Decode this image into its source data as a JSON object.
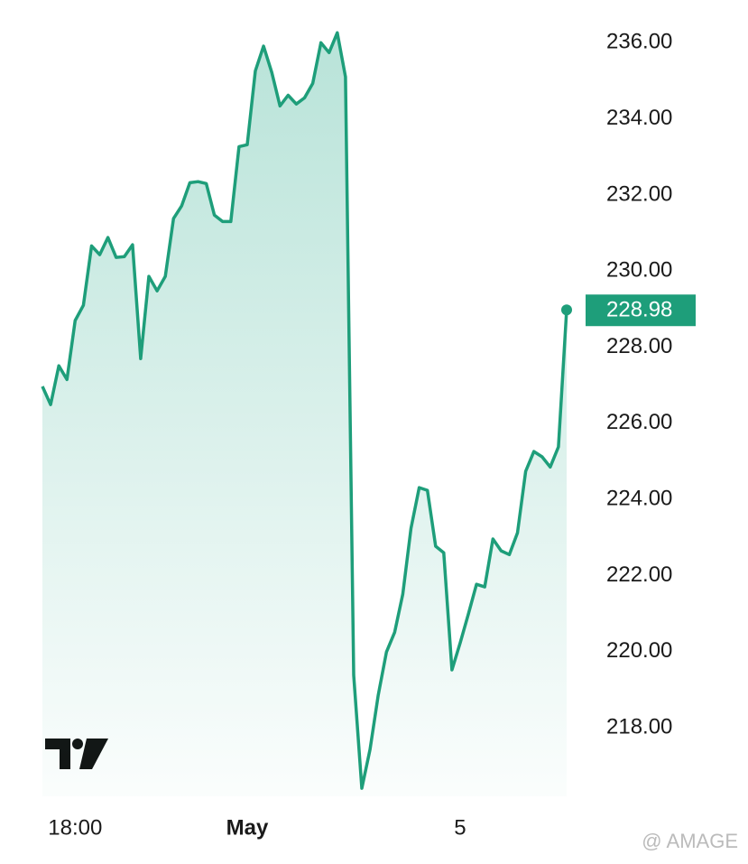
{
  "chart_data": {
    "type": "area",
    "categories": [
      null,
      null,
      null,
      null,
      "18:00",
      null,
      null,
      null,
      null,
      null,
      null,
      null,
      null,
      null,
      null,
      null,
      null,
      null,
      null,
      null,
      null,
      null,
      null,
      null,
      null,
      "May",
      null,
      null,
      null,
      null,
      null,
      null,
      null,
      null,
      null,
      null,
      null,
      null,
      null,
      null,
      null,
      null,
      null,
      null,
      null,
      null,
      null,
      null,
      null,
      null,
      null,
      "5",
      null,
      null,
      null,
      null,
      null,
      null,
      null,
      null,
      null,
      null,
      null,
      null,
      null
    ],
    "values": [
      226.97,
      226.49,
      227.51,
      227.15,
      228.7,
      229.1,
      230.66,
      230.43,
      230.88,
      230.36,
      230.38,
      230.69,
      227.7,
      229.86,
      229.48,
      229.86,
      231.38,
      231.71,
      232.32,
      232.35,
      232.3,
      231.47,
      231.3,
      231.3,
      233.27,
      233.32,
      235.26,
      235.91,
      235.22,
      234.34,
      234.62,
      234.39,
      234.55,
      234.93,
      236.0,
      235.74,
      236.26,
      235.1,
      219.38,
      216.41,
      217.43,
      218.86,
      219.99,
      220.51,
      221.51,
      223.24,
      224.31,
      224.24,
      222.77,
      222.6,
      219.52,
      220.23,
      220.99,
      221.77,
      221.7,
      222.96,
      222.65,
      222.55,
      223.12,
      224.74,
      225.26,
      225.12,
      224.85,
      225.38,
      228.98
    ],
    "color": "#1e9e7a",
    "ylim": [
      216.2,
      236.6
    ],
    "yticks": [
      {
        "value": 218,
        "label": "218.00"
      },
      {
        "value": 220,
        "label": "220.00"
      },
      {
        "value": 222,
        "label": "222.00"
      },
      {
        "value": 224,
        "label": "224.00"
      },
      {
        "value": 226,
        "label": "226.00"
      },
      {
        "value": 228,
        "label": "228.00"
      },
      {
        "value": 230,
        "label": "230.00"
      },
      {
        "value": 232,
        "label": "232.00"
      },
      {
        "value": 234,
        "label": "234.00"
      },
      {
        "value": 236,
        "label": "236.00"
      }
    ],
    "grid": false,
    "watermark": "@ AMAGE"
  }
}
